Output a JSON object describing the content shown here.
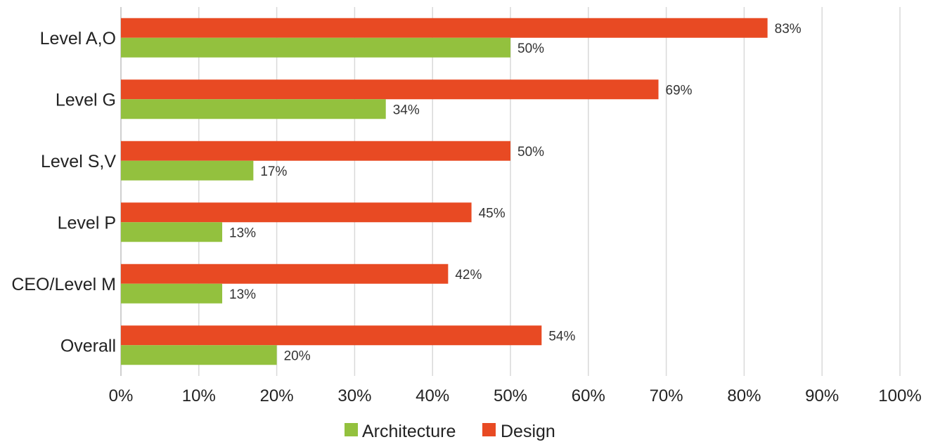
{
  "chart_data": {
    "type": "bar",
    "orientation": "horizontal",
    "categories": [
      "Level A,O",
      "Level G",
      "Level S,V",
      "Level P",
      "CEO/Level M",
      "Overall"
    ],
    "series": [
      {
        "name": "Design",
        "values": [
          83,
          69,
          50,
          45,
          42,
          54
        ],
        "labels": [
          "83%",
          "69%",
          "50%",
          "45%",
          "42%",
          "54%"
        ],
        "color": "#e84a23"
      },
      {
        "name": "Architecture",
        "values": [
          50,
          34,
          17,
          13,
          13,
          20
        ],
        "labels": [
          "50%",
          "34%",
          "17%",
          "13%",
          "13%",
          "20%"
        ],
        "color": "#93c13e"
      }
    ],
    "xlim": [
      0,
      100
    ],
    "x_ticks": [
      "0%",
      "10%",
      "20%",
      "30%",
      "40%",
      "50%",
      "60%",
      "70%",
      "80%",
      "90%",
      "100%"
    ],
    "grid": true,
    "legend": {
      "position": "bottom",
      "entries": [
        {
          "name": "Architecture",
          "color": "#93c13e"
        },
        {
          "name": "Design",
          "color": "#e84a23"
        }
      ]
    }
  }
}
